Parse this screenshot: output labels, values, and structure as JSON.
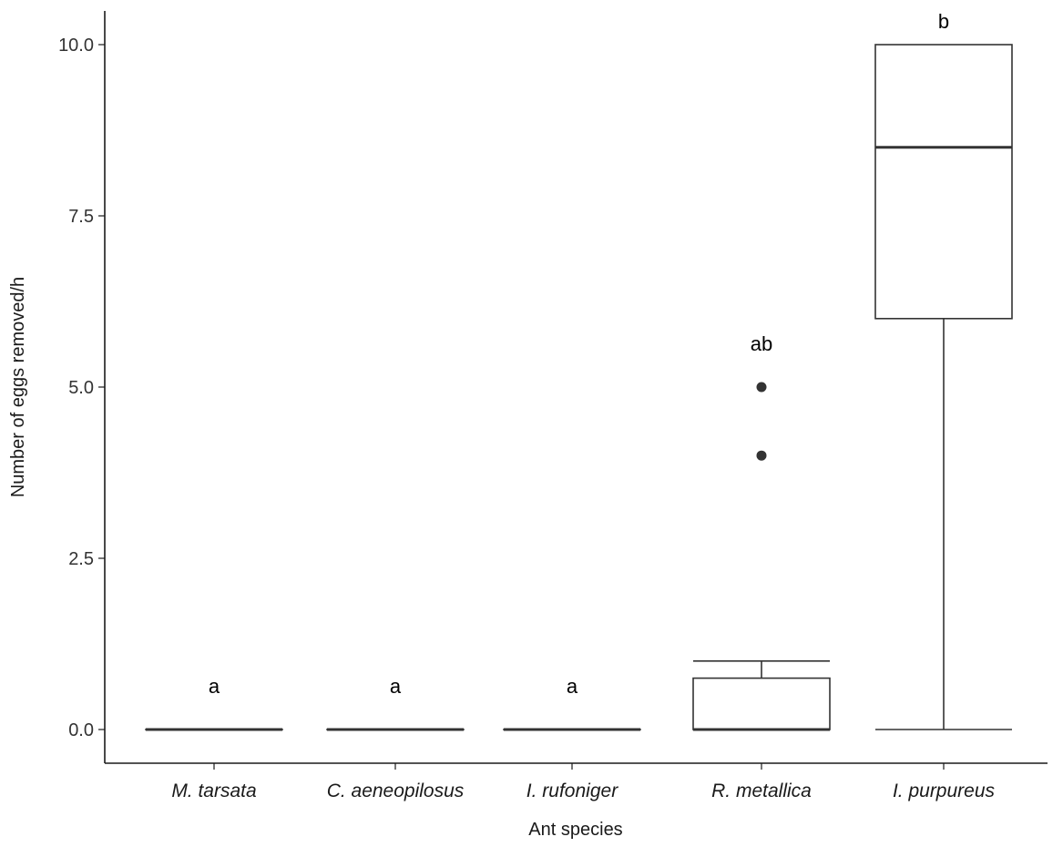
{
  "chart_data": {
    "type": "boxplot",
    "xlabel": "Ant species",
    "ylabel": "Number of eggs removed/h",
    "ylim": [
      -0.95,
      10.5
    ],
    "yticks": [
      0.0,
      2.5,
      5.0,
      7.5,
      10.0
    ],
    "ytick_labels": [
      "0.0",
      "2.5",
      "5.0",
      "7.5",
      "10.0"
    ],
    "grid": false,
    "legend": "none",
    "categories": [
      "M. tarsata",
      "C. aeneopilosus",
      "I. rufoniger",
      "R. metallica",
      "I. purpureus"
    ],
    "boxes": [
      {
        "category": "M. tarsata",
        "whisker_low": 0,
        "q1": 0,
        "median": 0,
        "q3": 0,
        "whisker_high": 0,
        "outliers": [],
        "group_label": "a"
      },
      {
        "category": "C. aeneopilosus",
        "whisker_low": 0,
        "q1": 0,
        "median": 0,
        "q3": 0,
        "whisker_high": 0,
        "outliers": [],
        "group_label": "a"
      },
      {
        "category": "I. rufoniger",
        "whisker_low": 0,
        "q1": 0,
        "median": 0,
        "q3": 0,
        "whisker_high": 0,
        "outliers": [],
        "group_label": "a"
      },
      {
        "category": "R. metallica",
        "whisker_low": 0,
        "q1": 0,
        "median": 0,
        "q3": 0.75,
        "whisker_high": 1,
        "outliers": [
          4,
          5
        ],
        "group_label": "ab"
      },
      {
        "category": "I. purpureus",
        "whisker_low": 0,
        "q1": 6,
        "median": 8.5,
        "q3": 10,
        "whisker_high": 10,
        "outliers": [],
        "group_label": "b"
      }
    ]
  }
}
